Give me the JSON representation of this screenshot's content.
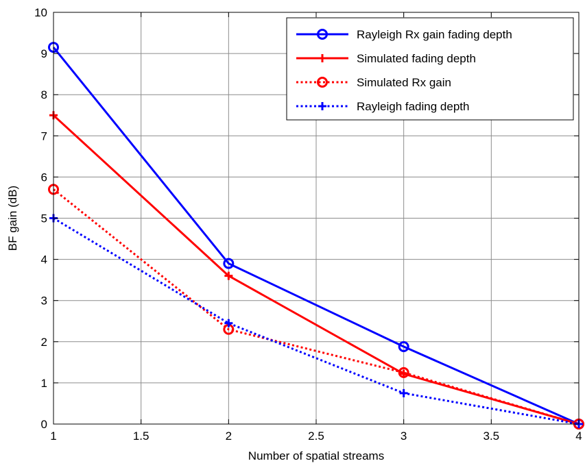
{
  "chart_data": {
    "type": "line",
    "title": "",
    "xlabel": "Number of spatial streams",
    "ylabel": "BF gain (dB)",
    "xlim": [
      1,
      4
    ],
    "ylim": [
      0,
      10
    ],
    "xticks": [
      1,
      1.5,
      2,
      2.5,
      3,
      3.5,
      4
    ],
    "xtick_labels": [
      "1",
      "1.5",
      "2",
      "2.5",
      "3",
      "3.5",
      "4"
    ],
    "yticks": [
      0,
      1,
      2,
      3,
      4,
      5,
      6,
      7,
      8,
      9,
      10
    ],
    "ytick_labels": [
      "0",
      "1",
      "2",
      "3",
      "4",
      "5",
      "6",
      "7",
      "8",
      "9",
      "10"
    ],
    "grid": true,
    "legend_position": "top-right",
    "x": [
      1,
      2,
      3,
      4
    ],
    "series": [
      {
        "name": "Rayleigh Rx gain fading depth",
        "values": [
          9.15,
          3.9,
          1.88,
          0.0
        ],
        "color": "#0000ff",
        "line_style": "solid",
        "marker": "circle"
      },
      {
        "name": "Simulated fading depth",
        "values": [
          7.5,
          3.6,
          1.22,
          0.0
        ],
        "color": "#ff0000",
        "line_style": "solid",
        "marker": "plus"
      },
      {
        "name": "Simulated Rx gain",
        "values": [
          5.7,
          2.3,
          1.25,
          0.0
        ],
        "color": "#ff0000",
        "line_style": "dotted",
        "marker": "circle"
      },
      {
        "name": "Rayleigh fading depth",
        "values": [
          5.0,
          2.45,
          0.75,
          0.0
        ],
        "color": "#0000ff",
        "line_style": "dotted",
        "marker": "plus"
      }
    ]
  }
}
